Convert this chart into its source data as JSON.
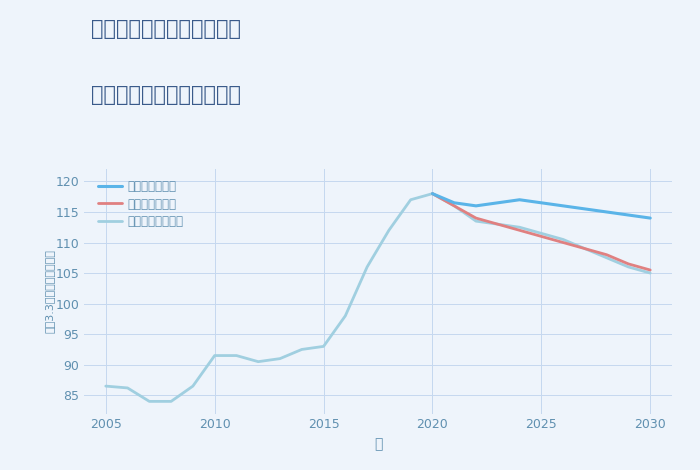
{
  "title_line1": "兵庫県姫路市夢前町又坂の",
  "title_line2": "中古マンションの価格推移",
  "xlabel": "年",
  "ylabel": "坪（3.3㎡）単価（万円）",
  "xlim": [
    2004.0,
    2031.0
  ],
  "ylim": [
    82,
    122
  ],
  "xticks": [
    2005,
    2010,
    2015,
    2020,
    2025,
    2030
  ],
  "yticks": [
    85,
    90,
    95,
    100,
    105,
    110,
    115,
    120
  ],
  "bg_color": "#eef4fb",
  "grid_color": "#c5d8ef",
  "good_color": "#5ab4e8",
  "bad_color": "#e08080",
  "normal_color": "#a0cfe0",
  "good_label": "グッドシナリオ",
  "bad_label": "バッドシナリオ",
  "normal_label": "ノーマルシナリオ",
  "history_years": [
    2005,
    2006,
    2007,
    2008,
    2009,
    2010,
    2011,
    2012,
    2013,
    2014,
    2015,
    2016,
    2017,
    2018,
    2019,
    2020
  ],
  "history_values": [
    86.5,
    86.2,
    84.0,
    84.0,
    86.5,
    91.5,
    91.5,
    90.5,
    91.0,
    92.5,
    93.0,
    98.0,
    106.0,
    112.0,
    117.0,
    118.0
  ],
  "good_years": [
    2020,
    2021,
    2022,
    2023,
    2024,
    2025,
    2026,
    2027,
    2028,
    2029,
    2030
  ],
  "good_values": [
    118.0,
    116.5,
    116.0,
    116.5,
    117.0,
    116.5,
    116.0,
    115.5,
    115.0,
    114.5,
    114.0
  ],
  "bad_years": [
    2020,
    2021,
    2022,
    2023,
    2024,
    2025,
    2026,
    2027,
    2028,
    2029,
    2030
  ],
  "bad_values": [
    118.0,
    116.0,
    114.0,
    113.0,
    112.0,
    111.0,
    110.0,
    109.0,
    108.0,
    106.5,
    105.5
  ],
  "normal_years": [
    2020,
    2021,
    2022,
    2023,
    2024,
    2025,
    2026,
    2027,
    2028,
    2029,
    2030
  ],
  "normal_values": [
    118.0,
    116.0,
    113.5,
    113.0,
    112.5,
    111.5,
    110.5,
    109.0,
    107.5,
    106.0,
    105.0
  ],
  "vline_years": [
    2015,
    2020,
    2025
  ],
  "title_color": "#3a5a8a",
  "axis_color": "#6090b0",
  "tick_color": "#6090b0"
}
